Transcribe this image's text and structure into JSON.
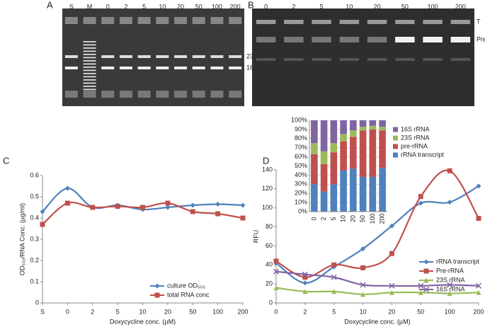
{
  "gels": [
    {
      "panel": "A",
      "lanes": [
        "S",
        "M",
        "0",
        "2",
        "5",
        "10",
        "20",
        "50",
        "100",
        "200"
      ],
      "bands": [
        "23S",
        "16S"
      ]
    },
    {
      "panel": "B",
      "lanes": [
        "0",
        "2",
        "5",
        "10",
        "20",
        "50",
        "100",
        "200"
      ],
      "bands": [
        "T",
        "Pre"
      ]
    }
  ],
  "chart_data": [
    {
      "type": "line",
      "panel": "C",
      "categories": [
        "S",
        "0",
        "2",
        "5",
        "10",
        "20",
        "50",
        "100",
        "200"
      ],
      "ylabel": "OD₅₅₀/RNA Conc. (µg/ml)",
      "xlabel": "Doxycycline conc. (µM)",
      "ylim": [
        0,
        0.6
      ],
      "yticks": [
        0,
        0.1,
        0.2,
        0.3,
        0.4,
        0.5,
        0.6
      ],
      "series": [
        {
          "name": "culture OD₅₅₀",
          "color": "#4f81bd",
          "marker": "diamond",
          "values": [
            0.43,
            0.54,
            0.45,
            0.46,
            0.44,
            0.45,
            0.46,
            0.465,
            0.46
          ]
        },
        {
          "name": "total RNA conc",
          "color": "#c0504d",
          "marker": "square",
          "values": [
            0.37,
            0.47,
            0.45,
            0.455,
            0.45,
            0.47,
            0.43,
            0.42,
            0.4
          ]
        }
      ]
    },
    {
      "type": "line",
      "panel": "D",
      "categories": [
        "0",
        "2",
        "5",
        "10",
        "20",
        "50",
        "100",
        "200"
      ],
      "ylabel": "RFU",
      "xlabel": "Doxycycline conc. (µM)",
      "ylim": [
        0,
        140
      ],
      "yticks": [
        0,
        20,
        40,
        60,
        80,
        100,
        120,
        140
      ],
      "series": [
        {
          "name": "rRNA transcript",
          "color": "#4f81bd",
          "marker": "diamond",
          "values": [
            42,
            21,
            38,
            57,
            81,
            105,
            106,
            123
          ]
        },
        {
          "name": "Pre-rRNA",
          "color": "#c0504d",
          "marker": "square",
          "values": [
            44,
            27,
            40,
            37,
            52,
            112,
            139,
            89
          ]
        },
        {
          "name": "23S rRNA",
          "color": "#9bbb59",
          "marker": "triangle",
          "values": [
            16,
            12,
            12,
            9,
            11,
            11,
            10,
            11
          ]
        },
        {
          "name": "16S rRNA",
          "color": "#8064a2",
          "marker": "x",
          "values": [
            33,
            30,
            27,
            19,
            18,
            18,
            19,
            18
          ]
        }
      ]
    },
    {
      "type": "stacked_bar",
      "categories": [
        "0",
        "2",
        "5",
        "10",
        "20",
        "50",
        "100",
        "200"
      ],
      "ylim": [
        0,
        100
      ],
      "yticks": [
        {
          "value": 0,
          "label": "0%"
        },
        {
          "value": 10,
          "label": "10%"
        },
        {
          "value": 20,
          "label": "20%"
        },
        {
          "value": 30,
          "label": "30%"
        },
        {
          "value": 40,
          "label": "40%"
        },
        {
          "value": 50,
          "label": "50%"
        },
        {
          "value": 60,
          "label": "60%"
        },
        {
          "value": 70,
          "label": "70%"
        },
        {
          "value": 80,
          "label": "80%"
        },
        {
          "value": 90,
          "label": "90%"
        },
        {
          "value": 100,
          "label": "100%"
        }
      ],
      "grid": true,
      "series": [
        {
          "name": "rRNA transcript",
          "color": "#4f81bd",
          "values": [
            30,
            22,
            30,
            45,
            47,
            38,
            38,
            48
          ]
        },
        {
          "name": "pre-rRNA",
          "color": "#c0504d",
          "values": [
            33,
            30,
            35,
            32,
            35,
            51,
            52,
            41
          ]
        },
        {
          "name": "23S rRNA",
          "color": "#9bbb59",
          "values": [
            12,
            14,
            10,
            8,
            7,
            4,
            4,
            4
          ]
        },
        {
          "name": "16S rRNA",
          "color": "#8064a2",
          "values": [
            25,
            34,
            25,
            15,
            11,
            7,
            6,
            7
          ]
        }
      ]
    }
  ]
}
